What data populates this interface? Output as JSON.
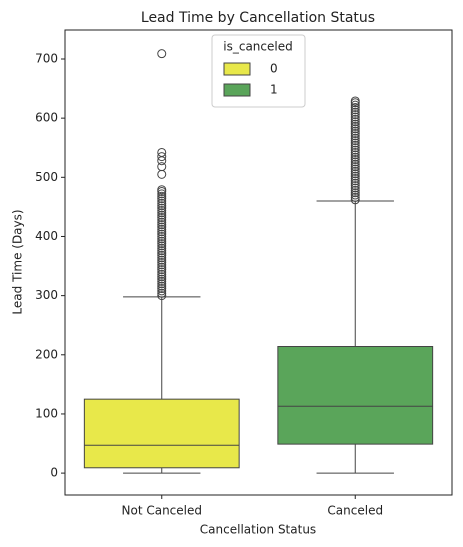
{
  "chart_data": {
    "type": "box",
    "title": "Lead Time by Cancellation Status",
    "x_label": "Cancellation Status",
    "y_label": "Lead Time (Days)",
    "categories": [
      "Not Canceled",
      "Canceled"
    ],
    "colors": [
      "#e8e84a",
      "#5aa55a"
    ],
    "boxes": [
      {
        "min": 0,
        "q1": 9,
        "median": 47,
        "q3": 125,
        "max": 298,
        "outliers": [
          300,
          304,
          308,
          312,
          316,
          320,
          324,
          328,
          332,
          336,
          340,
          344,
          348,
          352,
          356,
          360,
          364,
          368,
          372,
          376,
          380,
          384,
          388,
          392,
          396,
          400,
          404,
          408,
          412,
          416,
          420,
          424,
          428,
          432,
          436,
          440,
          444,
          448,
          452,
          456,
          460,
          464,
          468,
          472,
          476,
          479,
          505,
          518,
          528,
          535,
          542,
          709
        ]
      },
      {
        "min": 0,
        "q1": 49,
        "median": 113,
        "q3": 214,
        "max": 460,
        "outliers": [
          462,
          466,
          470,
          474,
          478,
          482,
          486,
          490,
          494,
          498,
          502,
          506,
          510,
          514,
          518,
          522,
          526,
          530,
          534,
          538,
          542,
          546,
          550,
          554,
          558,
          562,
          566,
          570,
          574,
          578,
          582,
          586,
          590,
          594,
          598,
          602,
          606,
          610,
          614,
          618,
          622,
          626,
          629
        ]
      }
    ],
    "legend": {
      "title": "is_canceled",
      "labels": [
        "0",
        "1"
      ],
      "position": "upper center"
    },
    "ylim": [
      -37,
      749
    ],
    "yticks": [
      0,
      100,
      200,
      300,
      400,
      500,
      600,
      700
    ]
  }
}
